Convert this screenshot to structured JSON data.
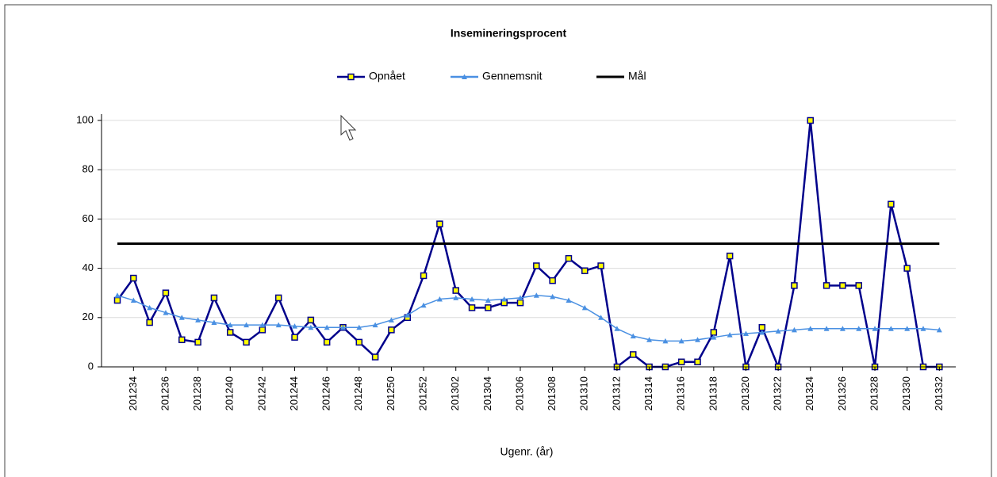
{
  "chart_data": {
    "type": "line",
    "title": "Insemineringsprocent",
    "x_label": "Ugenr. (år)",
    "categories": [
      null,
      "201234",
      null,
      "201236",
      null,
      "201238",
      null,
      "201240",
      null,
      "201242",
      null,
      "201244",
      null,
      "201246",
      null,
      "201248",
      null,
      "201250",
      null,
      "201252",
      null,
      "201302",
      null,
      "201304",
      null,
      "201306",
      null,
      "201308",
      null,
      "201310",
      null,
      "201312",
      null,
      "201314",
      null,
      "201316",
      null,
      "201318",
      null,
      "201320",
      null,
      "201322",
      null,
      "201324",
      null,
      "201326",
      null,
      "201328",
      null,
      "201330",
      null,
      "201332"
    ],
    "series": [
      {
        "name": "Opnået",
        "color": "#00008b",
        "marker": "square",
        "marker_color": "#ffff00",
        "values": [
          27,
          36,
          18,
          30,
          11,
          10,
          28,
          14,
          10,
          15,
          28,
          12,
          19,
          10,
          16,
          10,
          4,
          15,
          20,
          37,
          58,
          31,
          24,
          24,
          26,
          26,
          41,
          35,
          44,
          39,
          41,
          0,
          5,
          0,
          0,
          2,
          2,
          14,
          45,
          0,
          16,
          0,
          33,
          100,
          33,
          33,
          33,
          0,
          66,
          40,
          0,
          0
        ]
      },
      {
        "name": "Gennemsnit",
        "color": "#4a90e2",
        "marker": "triangle",
        "values": [
          29,
          27,
          24,
          22,
          20,
          19,
          18,
          17,
          17,
          17,
          17,
          16.5,
          16,
          16,
          16,
          16,
          17,
          19,
          21,
          25,
          27.5,
          28,
          27.5,
          27,
          27.5,
          28,
          29,
          28.5,
          27,
          24,
          20,
          15.5,
          12.5,
          11,
          10.5,
          10.5,
          11,
          12,
          13,
          13.5,
          14,
          14.5,
          15,
          15.5,
          15.5,
          15.5,
          15.5,
          15.5,
          15.5,
          15.5,
          15.5,
          15
        ]
      },
      {
        "name": "Mål",
        "color": "#000000",
        "marker": "none",
        "values": [
          50,
          50,
          50,
          50,
          50,
          50,
          50,
          50,
          50,
          50,
          50,
          50,
          50,
          50,
          50,
          50,
          50,
          50,
          50,
          50,
          50,
          50,
          50,
          50,
          50,
          50,
          50,
          50,
          50,
          50,
          50,
          50,
          50,
          50,
          50,
          50,
          50,
          50,
          50,
          50,
          50,
          50,
          50,
          50,
          50,
          50,
          50,
          50,
          50,
          50,
          50,
          50
        ]
      }
    ],
    "ylim": [
      0,
      100
    ],
    "yticks": [
      0,
      20,
      40,
      60,
      80,
      100
    ],
    "grid": true,
    "legend": "top"
  }
}
